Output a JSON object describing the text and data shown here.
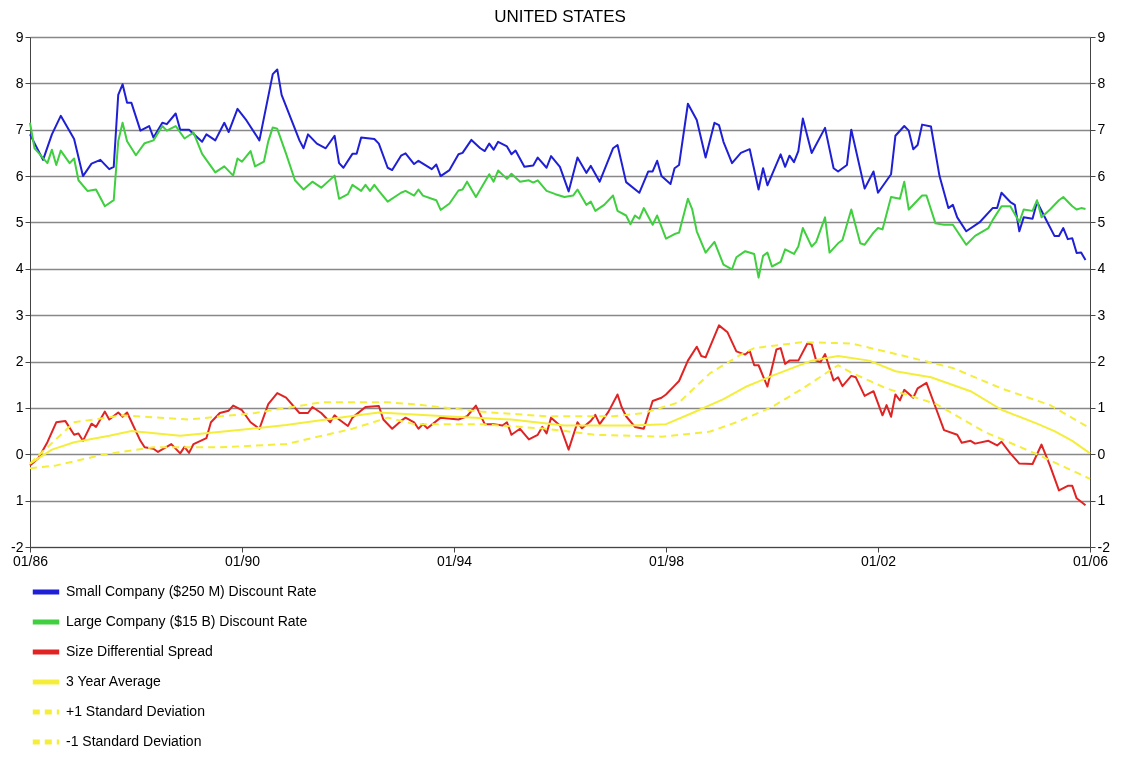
{
  "chart_data": {
    "type": "line",
    "title": "UNITED STATES",
    "xlim": [
      "1986-01",
      "2006-01"
    ],
    "xticks": [
      {
        "value": "1986-01",
        "label": "01/86"
      },
      {
        "value": "1990-01",
        "label": "01/90"
      },
      {
        "value": "1994-01",
        "label": "01/94"
      },
      {
        "value": "1998-01",
        "label": "01/98"
      },
      {
        "value": "2002-01",
        "label": "01/02"
      },
      {
        "value": "2006-01",
        "label": "01/06"
      }
    ],
    "ylim": [
      -2,
      9
    ],
    "yticks": [
      -2,
      {
        "value": -1,
        "label": "1"
      },
      0,
      1,
      2,
      3,
      4,
      5,
      6,
      7,
      8,
      9
    ],
    "y2lim": [
      -2,
      9
    ],
    "y2ticks": [
      -2,
      {
        "value": -1,
        "label": "1"
      },
      0,
      1,
      2,
      3,
      4,
      5,
      6,
      7,
      8,
      9
    ],
    "grid": "y",
    "legend": "bottom",
    "series": [
      {
        "name": "Small Company ($250 M) Discount Rate",
        "color": "#1f1fd6",
        "line_style": "solid",
        "x": [
          "1986-01",
          "1986-04",
          "1986-06",
          "1986-08",
          "1986-11",
          "1987-01",
          "1987-03",
          "1987-05",
          "1987-07",
          "1987-08",
          "1987-09",
          "1987-10",
          "1987-11",
          "1987-12",
          "1988-02",
          "1988-04",
          "1988-05",
          "1988-07",
          "1988-08",
          "1988-10",
          "1988-11",
          "1989-01",
          "1989-04",
          "1989-05",
          "1989-07",
          "1989-09",
          "1989-10",
          "1989-12",
          "1990-02",
          "1990-05",
          "1990-08",
          "1990-09",
          "1990-10",
          "1991-02",
          "1991-03",
          "1991-04",
          "1991-06",
          "1991-08",
          "1991-10",
          "1991-11",
          "1991-12",
          "1992-02",
          "1992-03",
          "1992-04",
          "1992-07",
          "1992-08",
          "1992-10",
          "1992-11",
          "1993-01",
          "1993-02",
          "1993-04",
          "1993-05",
          "1993-08",
          "1993-09",
          "1993-10",
          "1993-12",
          "1994-02",
          "1994-03",
          "1994-05",
          "1994-07",
          "1994-08",
          "1994-09",
          "1994-10",
          "1994-11",
          "1995-01",
          "1995-02",
          "1995-03",
          "1995-05",
          "1995-07",
          "1995-08",
          "1995-10",
          "1995-11",
          "1996-01",
          "1996-03",
          "1996-05",
          "1996-07",
          "1996-08",
          "1996-10",
          "1997-01",
          "1997-02",
          "1997-04",
          "1997-07",
          "1997-09",
          "1997-10",
          "1997-11",
          "1997-12",
          "1998-02",
          "1998-03",
          "1998-04",
          "1998-06",
          "1998-08",
          "1998-10",
          "1998-12",
          "1999-01",
          "1999-02",
          "1999-04",
          "1999-06",
          "1999-08",
          "1999-10",
          "1999-11",
          "1999-12",
          "2000-03",
          "2000-04",
          "2000-05",
          "2000-06",
          "2000-07",
          "2000-08",
          "2000-10",
          "2001-01",
          "2001-03",
          "2001-04",
          "2001-06",
          "2001-07",
          "2001-10",
          "2001-12",
          "2002-01",
          "2002-04",
          "2002-05",
          "2002-07",
          "2002-08",
          "2002-09",
          "2002-10",
          "2002-11",
          "2003-01",
          "2003-03",
          "2003-05",
          "2003-06",
          "2003-07",
          "2003-09",
          "2003-12",
          "2004-03",
          "2004-04",
          "2004-05",
          "2004-07",
          "2004-08",
          "2004-09",
          "2004-10",
          "2004-12",
          "2005-01",
          "2005-03",
          "2005-05",
          "2005-06",
          "2005-07",
          "2005-08",
          "2005-09",
          "2005-10",
          "2005-11",
          "2005-12"
        ],
        "values": [
          6.9,
          6.35,
          6.9,
          7.3,
          6.8,
          6.0,
          6.27,
          6.35,
          6.15,
          6.2,
          7.75,
          7.98,
          7.58,
          7.58,
          6.98,
          7.08,
          6.83,
          7.15,
          7.12,
          7.35,
          7.0,
          7.0,
          6.74,
          6.9,
          6.77,
          7.15,
          6.95,
          7.45,
          7.2,
          6.77,
          8.2,
          8.3,
          7.75,
          6.77,
          6.6,
          6.9,
          6.7,
          6.6,
          6.87,
          6.28,
          6.18,
          6.48,
          6.48,
          6.83,
          6.8,
          6.7,
          6.18,
          6.13,
          6.44,
          6.49,
          6.26,
          6.33,
          6.15,
          6.25,
          6.0,
          6.13,
          6.47,
          6.5,
          6.78,
          6.6,
          6.54,
          6.7,
          6.57,
          6.74,
          6.64,
          6.47,
          6.55,
          6.2,
          6.23,
          6.4,
          6.18,
          6.43,
          6.2,
          5.67,
          6.4,
          6.07,
          6.22,
          5.88,
          6.6,
          6.67,
          5.87,
          5.64,
          6.1,
          6.1,
          6.33,
          6.0,
          5.83,
          6.17,
          6.24,
          7.56,
          7.21,
          6.4,
          7.15,
          7.1,
          6.74,
          6.28,
          6.5,
          6.58,
          5.71,
          6.17,
          5.8,
          6.47,
          6.2,
          6.44,
          6.3,
          6.54,
          7.24,
          6.5,
          7.04,
          6.17,
          6.1,
          6.24,
          7.0,
          5.73,
          6.1,
          5.64,
          6.04,
          6.87,
          7.08,
          6.98,
          6.58,
          6.67,
          7.11,
          7.07,
          6.0,
          5.31,
          5.38,
          5.11,
          4.81,
          5.0,
          5.31,
          5.31,
          5.64,
          5.44,
          5.38,
          4.81,
          5.11,
          5.08,
          5.44,
          5.08,
          4.71,
          4.71,
          4.88,
          4.64,
          4.66,
          4.34,
          4.35,
          4.19
        ]
      },
      {
        "name": "Large Company ($15 B) Discount Rate",
        "color": "#3fcf3f",
        "line_style": "solid",
        "x": [
          "1986-01",
          "1986-02",
          "1986-03",
          "1986-05",
          "1986-06",
          "1986-07",
          "1986-08",
          "1986-10",
          "1986-11",
          "1986-12",
          "1987-02",
          "1987-04",
          "1987-06",
          "1987-08",
          "1987-09",
          "1987-10",
          "1987-11",
          "1988-01",
          "1988-03",
          "1988-05",
          "1988-07",
          "1988-08",
          "1988-10",
          "1988-12",
          "1989-02",
          "1989-04",
          "1989-07",
          "1989-09",
          "1989-11",
          "1989-12",
          "1990-01",
          "1990-03",
          "1990-04",
          "1990-06",
          "1990-07",
          "1990-08",
          "1990-09",
          "1990-11",
          "1991-01",
          "1991-03",
          "1991-05",
          "1991-07",
          "1991-10",
          "1991-11",
          "1992-01",
          "1992-02",
          "1992-04",
          "1992-05",
          "1992-06",
          "1992-07",
          "1992-08",
          "1992-10",
          "1993-01",
          "1993-02",
          "1993-04",
          "1993-05",
          "1993-06",
          "1993-08",
          "1993-09",
          "1993-10",
          "1993-12",
          "1994-02",
          "1994-03",
          "1994-04",
          "1994-06",
          "1994-09",
          "1994-10",
          "1994-11",
          "1995-01",
          "1995-02",
          "1995-04",
          "1995-06",
          "1995-07",
          "1995-08",
          "1995-10",
          "1995-12",
          "1996-02",
          "1996-04",
          "1996-05",
          "1996-07",
          "1996-08",
          "1996-09",
          "1996-11",
          "1997-01",
          "1997-02",
          "1997-04",
          "1997-05",
          "1997-06",
          "1997-07",
          "1997-08",
          "1997-10",
          "1997-11",
          "1998-01",
          "1998-03",
          "1998-04",
          "1998-06",
          "1998-07",
          "1998-08",
          "1998-10",
          "1998-12",
          "1999-02",
          "1999-04",
          "1999-05",
          "1999-07",
          "1999-09",
          "1999-10",
          "1999-11",
          "1999-12",
          "2000-01",
          "2000-03",
          "2000-04",
          "2000-06",
          "2000-07",
          "2000-08",
          "2000-10",
          "2000-11",
          "2001-01",
          "2001-02",
          "2001-04",
          "2001-05",
          "2001-07",
          "2001-09",
          "2001-10",
          "2001-12",
          "2002-01",
          "2002-02",
          "2002-04",
          "2002-06",
          "2002-07",
          "2002-08",
          "2002-11",
          "2002-12",
          "2003-02",
          "2003-04",
          "2003-06",
          "2003-07",
          "2003-09",
          "2003-11",
          "2004-02",
          "2004-03",
          "2004-05",
          "2004-07",
          "2004-09",
          "2004-10",
          "2004-12",
          "2005-01",
          "2005-02",
          "2005-04",
          "2005-06",
          "2005-07",
          "2005-09",
          "2005-10",
          "2005-11",
          "2005-12"
        ],
        "values": [
          7.15,
          6.6,
          6.5,
          6.28,
          6.57,
          6.24,
          6.55,
          6.28,
          6.38,
          5.91,
          5.68,
          5.71,
          5.35,
          5.48,
          6.75,
          7.15,
          6.75,
          6.45,
          6.71,
          6.77,
          7.08,
          6.98,
          7.08,
          6.81,
          6.94,
          6.48,
          6.08,
          6.21,
          6.01,
          6.38,
          6.31,
          6.54,
          6.21,
          6.31,
          6.75,
          7.05,
          7.02,
          6.48,
          5.91,
          5.71,
          5.88,
          5.75,
          6.01,
          5.51,
          5.61,
          5.81,
          5.68,
          5.81,
          5.68,
          5.81,
          5.68,
          5.45,
          5.64,
          5.68,
          5.58,
          5.71,
          5.58,
          5.51,
          5.48,
          5.27,
          5.41,
          5.69,
          5.71,
          5.88,
          5.55,
          6.04,
          5.88,
          6.12,
          5.94,
          6.05,
          5.88,
          5.91,
          5.86,
          5.91,
          5.68,
          5.61,
          5.55,
          5.58,
          5.71,
          5.38,
          5.45,
          5.25,
          5.38,
          5.58,
          5.25,
          5.15,
          4.96,
          5.15,
          5.08,
          5.31,
          4.95,
          5.15,
          4.65,
          4.75,
          4.78,
          5.51,
          5.28,
          4.81,
          4.35,
          4.58,
          4.09,
          3.99,
          4.25,
          4.38,
          4.32,
          3.81,
          4.28,
          4.35,
          4.05,
          4.15,
          4.42,
          4.32,
          4.48,
          4.88,
          4.48,
          4.58,
          5.11,
          4.35,
          4.55,
          4.62,
          5.28,
          4.55,
          4.52,
          4.78,
          4.88,
          4.85,
          5.55,
          5.51,
          5.88,
          5.28,
          5.58,
          5.58,
          4.98,
          4.95,
          4.95,
          4.81,
          4.52,
          4.71,
          4.88,
          5.05,
          5.35,
          5.35,
          5.01,
          5.28,
          5.25,
          5.48,
          5.11,
          5.28,
          5.48,
          5.55,
          5.35,
          5.28,
          5.31,
          5.29
        ]
      },
      {
        "name": "Size Differential Spread",
        "color": "#e02424",
        "line_style": "solid",
        "x": [
          "1986-01",
          "1986-03",
          "1986-05",
          "1986-07",
          "1986-09",
          "1986-11",
          "1986-12",
          "1987-01",
          "1987-03",
          "1987-04",
          "1987-06",
          "1987-07",
          "1987-09",
          "1987-10",
          "1987-11",
          "1988-02",
          "1988-03",
          "1988-05",
          "1988-06",
          "1988-09",
          "1988-11",
          "1988-12",
          "1989-01",
          "1989-02",
          "1989-05",
          "1989-06",
          "1989-08",
          "1989-10",
          "1989-11",
          "1990-01",
          "1990-03",
          "1990-05",
          "1990-07",
          "1990-09",
          "1990-11",
          "1991-02",
          "1991-04",
          "1991-05",
          "1991-07",
          "1991-09",
          "1991-10",
          "1991-11",
          "1992-01",
          "1992-02",
          "1992-05",
          "1992-08",
          "1992-09",
          "1992-11",
          "1993-01",
          "1993-02",
          "1993-04",
          "1993-05",
          "1993-06",
          "1993-07",
          "1993-10",
          "1994-02",
          "1994-04",
          "1994-06",
          "1994-08",
          "1994-10",
          "1994-12",
          "1995-01",
          "1995-02",
          "1995-04",
          "1995-06",
          "1995-08",
          "1995-09",
          "1995-10",
          "1995-11",
          "1996-01",
          "1996-03",
          "1996-05",
          "1996-06",
          "1996-08",
          "1996-09",
          "1996-10",
          "1996-12",
          "1997-02",
          "1997-03",
          "1997-04",
          "1997-06",
          "1997-08",
          "1997-10",
          "1997-12",
          "1998-01",
          "1998-03",
          "1998-04",
          "1998-06",
          "1998-08",
          "1998-09",
          "1998-10",
          "1999-01",
          "1999-03",
          "1999-05",
          "1999-07",
          "1999-08",
          "1999-09",
          "1999-10",
          "1999-12",
          "2000-02",
          "2000-03",
          "2000-04",
          "2000-05",
          "2000-07",
          "2000-09",
          "2000-10",
          "2000-11",
          "2000-12",
          "2001-01",
          "2001-03",
          "2001-04",
          "2001-05",
          "2001-07",
          "2001-08",
          "2001-10",
          "2001-12",
          "2002-02",
          "2002-03",
          "2002-04",
          "2002-05",
          "2002-06",
          "2002-07",
          "2002-09",
          "2002-10",
          "2002-12",
          "2003-02",
          "2003-04",
          "2003-07",
          "2003-08",
          "2003-10",
          "2003-11",
          "2004-02",
          "2004-04",
          "2004-05",
          "2004-07",
          "2004-09",
          "2004-12",
          "2005-02",
          "2005-04",
          "2005-06",
          "2005-08",
          "2005-09",
          "2005-10",
          "2005-12"
        ],
        "values": [
          -0.24,
          -0.08,
          0.26,
          0.69,
          0.72,
          0.42,
          0.45,
          0.29,
          0.66,
          0.59,
          0.92,
          0.75,
          0.9,
          0.81,
          0.9,
          0.29,
          0.15,
          0.12,
          0.05,
          0.22,
          0.02,
          0.16,
          0.03,
          0.22,
          0.35,
          0.69,
          0.89,
          0.94,
          1.05,
          0.95,
          0.69,
          0.55,
          1.08,
          1.32,
          1.22,
          0.89,
          0.89,
          1.02,
          0.89,
          0.69,
          0.84,
          0.75,
          0.61,
          0.79,
          1.02,
          1.04,
          0.75,
          0.55,
          0.72,
          0.79,
          0.69,
          0.55,
          0.65,
          0.56,
          0.79,
          0.75,
          0.82,
          1.05,
          0.65,
          0.65,
          0.62,
          0.69,
          0.42,
          0.55,
          0.32,
          0.42,
          0.59,
          0.45,
          0.79,
          0.62,
          0.1,
          0.69,
          0.56,
          0.72,
          0.85,
          0.65,
          0.92,
          1.29,
          1.02,
          0.82,
          0.59,
          0.55,
          1.15,
          1.22,
          1.29,
          1.48,
          1.58,
          2.02,
          2.32,
          2.12,
          2.09,
          2.78,
          2.63,
          2.22,
          2.15,
          2.23,
          1.92,
          1.92,
          1.46,
          2.26,
          2.29,
          1.95,
          2.02,
          2.02,
          2.39,
          2.37,
          2.02,
          1.99,
          2.16,
          1.59,
          1.66,
          1.47,
          1.69,
          1.66,
          1.26,
          1.36,
          0.84,
          1.06,
          0.81,
          1.29,
          1.16,
          1.39,
          1.22,
          1.42,
          1.54,
          1.02,
          0.52,
          0.42,
          0.25,
          0.29,
          0.23,
          0.29,
          0.19,
          0.27,
          0.02,
          -0.2,
          -0.21,
          0.21,
          -0.25,
          -0.78,
          -0.68,
          -0.68,
          -0.95,
          -1.1
        ]
      },
      {
        "name": "3 Year Average",
        "color": "#f4ee3a",
        "line_style": "solid",
        "x": [
          "1986-01",
          "1986-06",
          "1986-11",
          "1987-07",
          "1987-12",
          "1988-11",
          "1989-10",
          "1990-11",
          "1991-11",
          "1992-08",
          "1993-11",
          "1995-02",
          "1996-02",
          "1997-05",
          "1998-01",
          "1998-07",
          "1999-02",
          "1999-07",
          "2000-01",
          "2000-10",
          "2001-04",
          "2001-11",
          "2002-05",
          "2003-01",
          "2003-10",
          "2004-05",
          "2005-01",
          "2005-05",
          "2005-09",
          "2006-01"
        ],
        "values": [
          -0.2,
          0.1,
          0.26,
          0.4,
          0.5,
          0.4,
          0.5,
          0.63,
          0.79,
          0.9,
          0.82,
          0.75,
          0.62,
          0.62,
          0.65,
          0.89,
          1.19,
          1.45,
          1.69,
          2.02,
          2.12,
          2.02,
          1.79,
          1.66,
          1.36,
          0.96,
          0.66,
          0.5,
          0.29,
          0.02
        ]
      },
      {
        "name": "+1 Standard Deviation",
        "color": "#f4ee3a",
        "line_style": "dashed",
        "x": [
          "1986-01",
          "1986-11",
          "1987-10",
          "1989-01",
          "1990-04",
          "1991-07",
          "1992-10",
          "1993-04",
          "1994-07",
          "1995-10",
          "1997-01",
          "1997-08",
          "1998-04",
          "1998-11",
          "1999-06",
          "1999-09",
          "2000-08",
          "2001-07",
          "2002-07",
          "2003-06",
          "2004-05",
          "2005-04",
          "2006-01"
        ],
        "values": [
          -0.2,
          0.69,
          0.84,
          0.75,
          0.89,
          1.12,
          1.12,
          1.08,
          0.92,
          0.82,
          0.82,
          0.89,
          1.12,
          1.75,
          2.15,
          2.29,
          2.42,
          2.39,
          2.12,
          1.86,
          1.42,
          1.06,
          0.56
        ]
      },
      {
        "name": "-1 Standard Deviation",
        "color": "#f4ee3a",
        "line_style": "dashed",
        "x": [
          "1986-01",
          "1986-07",
          "1987-06",
          "1988-05",
          "1989-08",
          "1990-11",
          "1992-02",
          "1992-10",
          "1993-04",
          "1994-07",
          "1995-10",
          "1996-09",
          "1997-12",
          "1998-11",
          "1999-05",
          "2000-01",
          "2000-08",
          "2001-04",
          "2001-07",
          "2002-03",
          "2003-02",
          "2004-01",
          "2005-01",
          "2006-01"
        ],
        "values": [
          -0.3,
          -0.24,
          0.0,
          0.15,
          0.15,
          0.22,
          0.55,
          0.79,
          0.65,
          0.65,
          0.55,
          0.42,
          0.38,
          0.49,
          0.69,
          1.02,
          1.42,
          1.92,
          1.76,
          1.42,
          1.09,
          0.49,
          0.0,
          -0.53
        ]
      }
    ]
  }
}
